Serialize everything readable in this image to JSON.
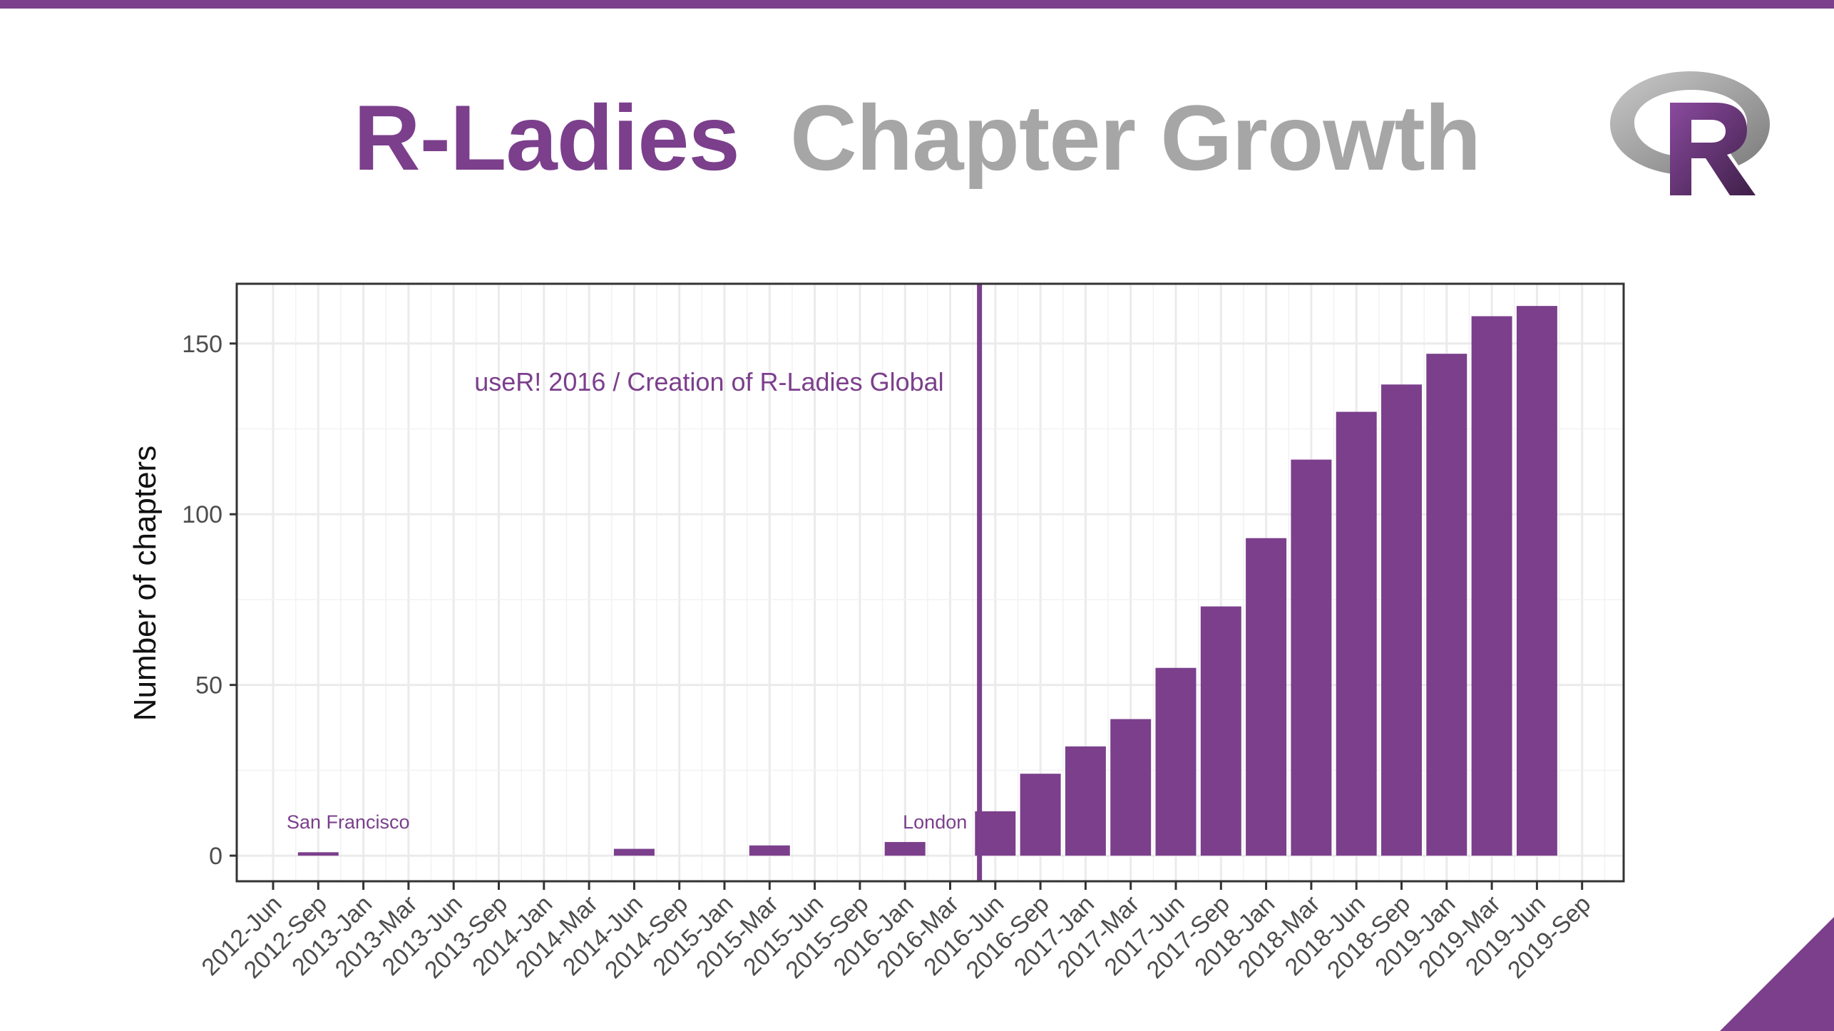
{
  "slide": {
    "title_part1": "R-Ladies",
    "title_part2": "Chapter Growth",
    "colors": {
      "accent": "#7b3f8c",
      "title_gray": "#a6a6a6",
      "grid": "#ebebeb",
      "panel_border": "#333333",
      "axis_text": "#4d4d4d"
    },
    "logo_icon": "r-logo-icon",
    "corner_icon": "corner-triangle-icon"
  },
  "chart_data": {
    "type": "bar",
    "title": "",
    "xlabel": "",
    "ylabel": "Number of chapters",
    "ylim": [
      -7.5,
      167.5
    ],
    "yticks": [
      0,
      50,
      100,
      150
    ],
    "x_tick_labels": [
      "2012-Jun",
      "2012-Sep",
      "2013-Jan",
      "2013-Mar",
      "2013-Jun",
      "2013-Sep",
      "2014-Jan",
      "2014-Mar",
      "2014-Jun",
      "2014-Sep",
      "2015-Jan",
      "2015-Mar",
      "2015-Jun",
      "2015-Sep",
      "2016-Jan",
      "2016-Mar",
      "2016-Jun",
      "2016-Sep",
      "2017-Jan",
      "2017-Mar",
      "2017-Jun",
      "2017-Sep",
      "2018-Jan",
      "2018-Mar",
      "2018-Jun",
      "2018-Sep",
      "2019-Jan",
      "2019-Mar",
      "2019-Jun",
      "2019-Sep"
    ],
    "categories": [
      "2012-Sep",
      "2014-Jun",
      "2015-Mar",
      "2016-Jan",
      "2016-Jun",
      "2016-Sep",
      "2017-Jan",
      "2017-Mar",
      "2017-Jun",
      "2017-Sep",
      "2018-Jan",
      "2018-Mar",
      "2018-Jun",
      "2018-Sep",
      "2019-Jan",
      "2019-Mar",
      "2019-Jun"
    ],
    "values": [
      1,
      2,
      3,
      4,
      13,
      24,
      32,
      40,
      55,
      73,
      93,
      116,
      130,
      138,
      147,
      158,
      161
    ],
    "vline": {
      "between": [
        "2016-Mar",
        "2016-Jun"
      ],
      "label": "useR! 2016 / Creation of R-Ladies Global"
    },
    "annotations": [
      {
        "category": "2012-Sep",
        "text": "San Francisco"
      },
      {
        "category": "2016-Jan",
        "text": "London"
      }
    ],
    "grid": true,
    "legend": "none"
  }
}
